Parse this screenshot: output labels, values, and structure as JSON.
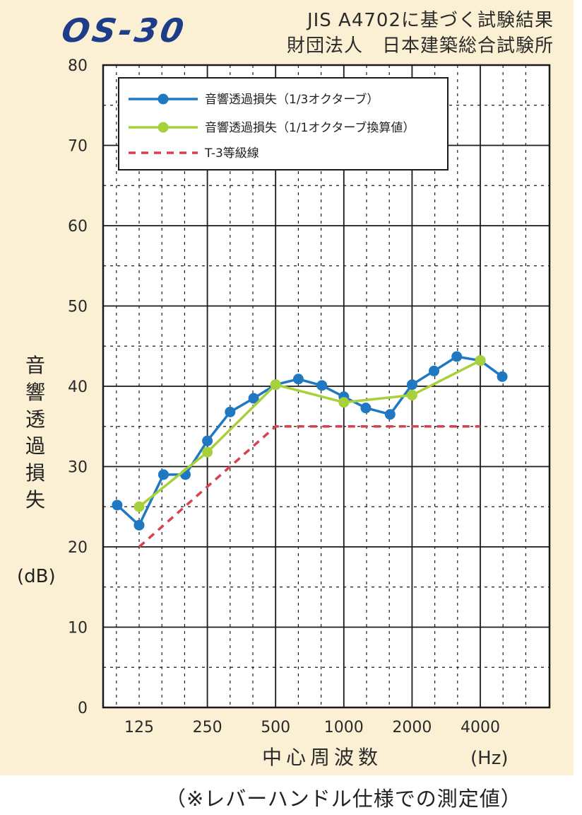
{
  "header": {
    "logo": "OS-30",
    "line1": "JIS A4702に基づく試験結果",
    "line2": "財団法人　日本建築総合試験所"
  },
  "footnote": "（※レバーハンドル仕様での測定値）",
  "colors": {
    "background": "#fbf0d3",
    "series_1_3": "#1f78c1",
    "series_1_1": "#a6d13a",
    "grade_line": "#d9414e",
    "grid": "#1a1a1a"
  },
  "chart_data": {
    "type": "line",
    "ylabel": "音響透過損失",
    "yunit": "(dB)",
    "xlabel": "中心周波数",
    "xunit": "(Hz)",
    "ylim": [
      0,
      80
    ],
    "yticks": [
      "0",
      "10",
      "20",
      "30",
      "40",
      "50",
      "60",
      "70",
      "80"
    ],
    "x_tick_labels": [
      "125",
      "250",
      "500",
      "1000",
      "2000",
      "4000"
    ],
    "grid": true,
    "legend_position": "top-left",
    "series": [
      {
        "name": "音響透過損失（1/3オクターブ）",
        "style": "line-marker",
        "x": [
          100,
          125,
          160,
          200,
          250,
          315,
          400,
          500,
          630,
          800,
          1000,
          1250,
          1600,
          2000,
          2500,
          3150,
          4000,
          5000
        ],
        "values": [
          25.2,
          22.7,
          29.0,
          29.0,
          33.2,
          36.8,
          38.5,
          40.2,
          40.9,
          40.1,
          38.7,
          37.3,
          36.5,
          40.2,
          41.9,
          43.7,
          43.2,
          41.2
        ]
      },
      {
        "name": "音響透過損失（1/1オクターブ換算値）",
        "style": "line-marker",
        "x": [
          125,
          250,
          500,
          1000,
          2000,
          4000
        ],
        "values": [
          25.0,
          31.8,
          40.2,
          38.0,
          38.9,
          43.2
        ]
      },
      {
        "name": "T-3等級線",
        "style": "dashed",
        "x": [
          125,
          500,
          4000
        ],
        "values": [
          20,
          35,
          35
        ]
      }
    ]
  }
}
